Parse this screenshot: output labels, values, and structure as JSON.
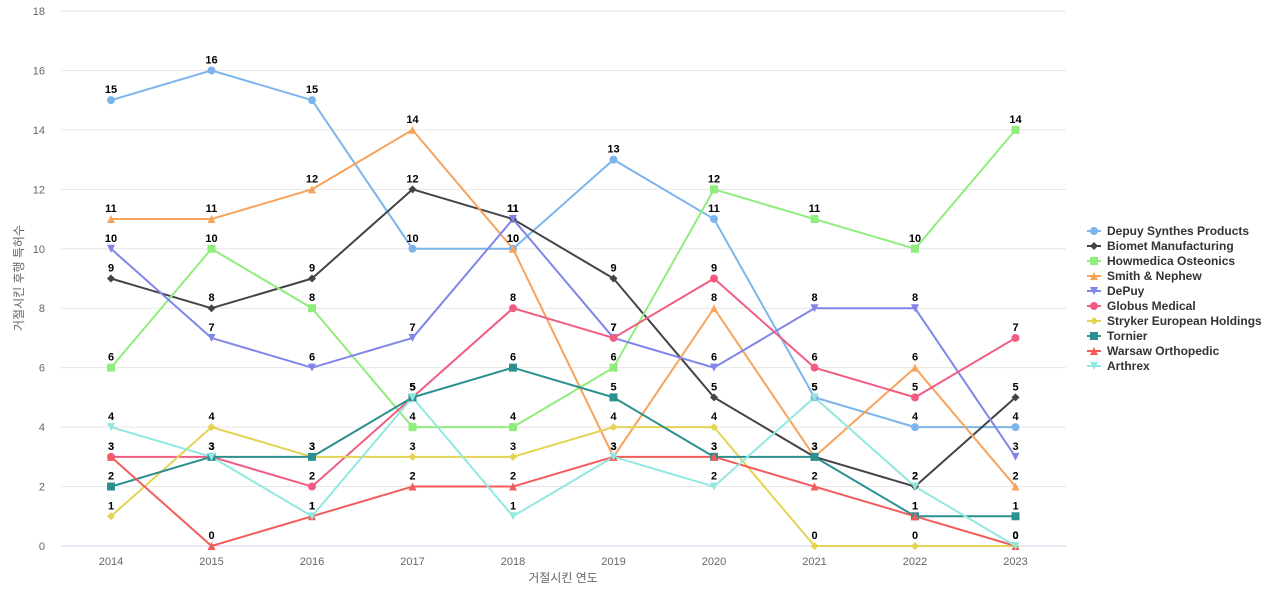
{
  "chart_data": {
    "type": "line",
    "title": "",
    "xlabel": "거절시킨 연도",
    "ylabel": "거절시킨 후행 특허수",
    "ylim": [
      0,
      18
    ],
    "yticks": [
      0,
      2,
      4,
      6,
      8,
      10,
      12,
      14,
      16,
      18
    ],
    "grid": true,
    "legend_position": "right",
    "categories": [
      "2014",
      "2015",
      "2016",
      "2017",
      "2018",
      "2019",
      "2020",
      "2021",
      "2022",
      "2023"
    ],
    "series": [
      {
        "name": "Depuy Synthes Products",
        "color": "#7cb5ec",
        "marker": "circle",
        "values": [
          15,
          16,
          15,
          10,
          10,
          13,
          11,
          5,
          4,
          4
        ]
      },
      {
        "name": "Biomet Manufacturing",
        "color": "#434348",
        "marker": "diamond",
        "values": [
          9,
          8,
          9,
          12,
          11,
          9,
          5,
          3,
          2,
          5
        ]
      },
      {
        "name": "Howmedica Osteonics",
        "color": "#90ed7d",
        "marker": "square",
        "values": [
          6,
          10,
          8,
          4,
          4,
          6,
          12,
          11,
          10,
          14
        ]
      },
      {
        "name": "Smith & Nephew",
        "color": "#f7a35c",
        "marker": "triangle",
        "values": [
          11,
          11,
          12,
          14,
          10,
          3,
          8,
          3,
          6,
          2
        ]
      },
      {
        "name": "DePuy",
        "color": "#8085e9",
        "marker": "triangle-down",
        "values": [
          10,
          7,
          6,
          7,
          11,
          7,
          6,
          8,
          8,
          3
        ]
      },
      {
        "name": "Globus Medical",
        "color": "#f15c80",
        "marker": "circle",
        "values": [
          3,
          3,
          2,
          5,
          8,
          7,
          9,
          6,
          5,
          7
        ]
      },
      {
        "name": "Stryker European Holdings",
        "color": "#e4d354",
        "marker": "diamond",
        "values": [
          1,
          4,
          3,
          3,
          3,
          4,
          4,
          0,
          0,
          0
        ]
      },
      {
        "name": "Tornier",
        "color": "#2b908f",
        "marker": "square",
        "values": [
          2,
          3,
          3,
          5,
          6,
          5,
          3,
          3,
          1,
          1
        ]
      },
      {
        "name": "Warsaw Orthopedic",
        "color": "#f45b5b",
        "marker": "triangle",
        "values": [
          3,
          0,
          1,
          2,
          2,
          3,
          3,
          2,
          1,
          0
        ]
      },
      {
        "name": "Arthrex",
        "color": "#91e8e1",
        "marker": "triangle-down",
        "values": [
          4,
          3,
          1,
          5,
          1,
          3,
          2,
          5,
          2,
          0
        ]
      }
    ]
  }
}
